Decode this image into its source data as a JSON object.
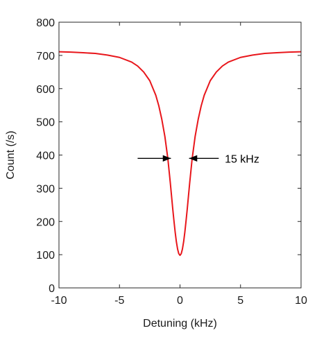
{
  "chart_data": {
    "type": "line",
    "title": "",
    "xlabel": "Detuning (kHz)",
    "ylabel": "Count (/s)",
    "xlim": [
      -10,
      10
    ],
    "ylim": [
      0,
      800
    ],
    "xticks": [
      -10,
      -5,
      0,
      5,
      10
    ],
    "yticks": [
      0,
      100,
      200,
      300,
      400,
      500,
      600,
      700,
      800
    ],
    "xtick_labels": [
      "-10",
      "-5",
      "0",
      "5",
      "10"
    ],
    "ytick_labels": [
      "0",
      "100",
      "200",
      "300",
      "400",
      "500",
      "600",
      "700",
      "800"
    ],
    "grid": false,
    "series": [
      {
        "color": "#e8161b",
        "x": [
          -10,
          -9,
          -8,
          -7,
          -6,
          -5,
          -4,
          -3.5,
          -3,
          -2.5,
          -2,
          -1.75,
          -1.5,
          -1.25,
          -1,
          -0.9,
          -0.8,
          -0.7,
          -0.6,
          -0.5,
          -0.4,
          -0.3,
          -0.2,
          -0.1,
          0,
          0.1,
          0.2,
          0.3,
          0.4,
          0.5,
          0.6,
          0.7,
          0.8,
          0.9,
          1,
          1.25,
          1.5,
          1.75,
          2,
          2.5,
          3,
          3.5,
          4,
          5,
          6,
          7,
          8,
          9,
          10
        ],
        "y": [
          711,
          710,
          708,
          706,
          701,
          694,
          680,
          668,
          650,
          624,
          580,
          548,
          507,
          456,
          388,
          352,
          316,
          277,
          238,
          202,
          168,
          139,
          117,
          103,
          98,
          103,
          117,
          139,
          168,
          202,
          238,
          277,
          316,
          352,
          388,
          456,
          507,
          548,
          580,
          624,
          650,
          668,
          680,
          694,
          701,
          706,
          708,
          710,
          711
        ]
      }
    ],
    "annotations": [
      {
        "type": "arrow",
        "direction": "right",
        "x_from": -3.5,
        "x_to": -0.75,
        "y": 390
      },
      {
        "type": "arrow",
        "direction": "left",
        "x_from": 3.2,
        "x_to": 0.75,
        "y": 390
      },
      {
        "type": "text",
        "text": "15 kHz",
        "x": 3.7,
        "y": 390
      }
    ]
  }
}
